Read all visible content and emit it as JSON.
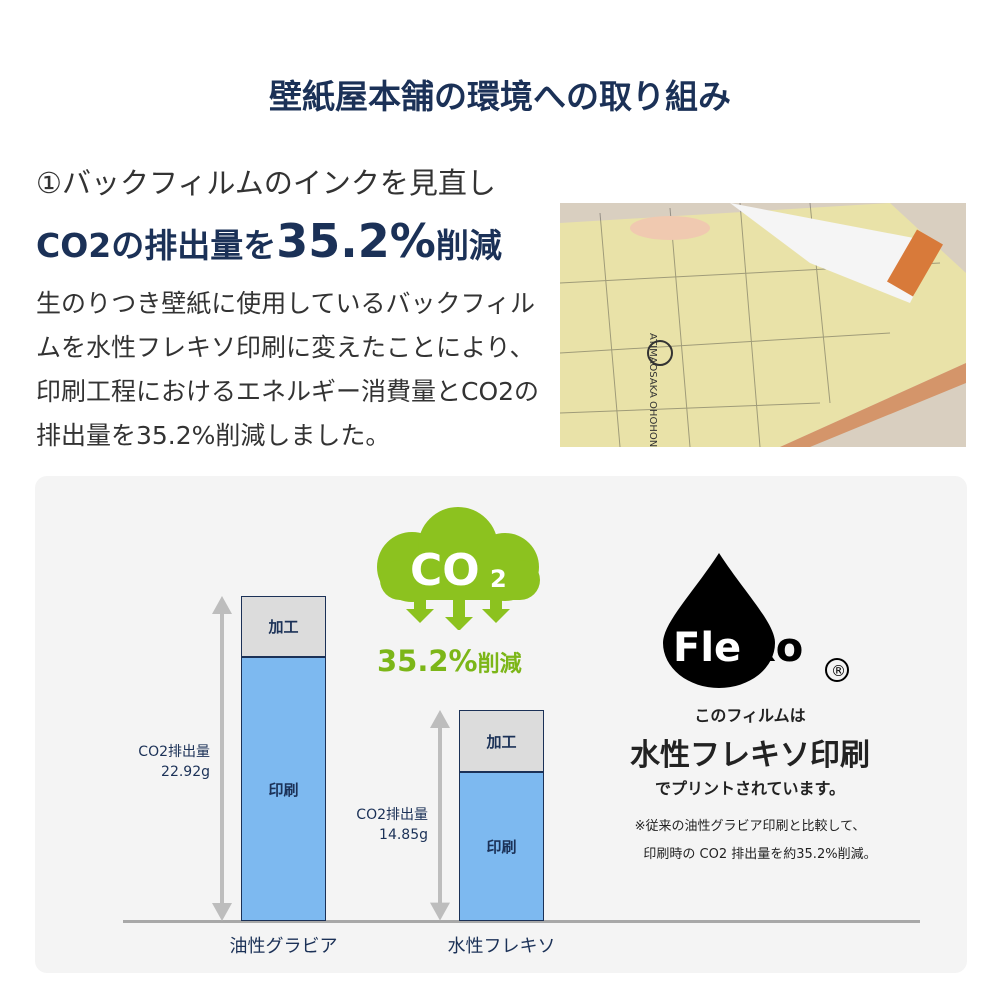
{
  "header": {
    "title": "壁紙屋本舗の環境への取り組み"
  },
  "section": {
    "subtitle": "①バックフィルムのインクを見直し",
    "headline_pre": "CO2の排出量を",
    "headline_value": "35.2%",
    "headline_post": "削減",
    "body": "生のりつき壁紙に使用しているバックフィルムを水性フレキソ印刷に変えたことにより、印刷工程におけるエネルギー消費量とCO2の排出量を35.2%削減しました。"
  },
  "photo": {
    "label": "ATIMAOSAKA OHOHON"
  },
  "badge": {
    "co2": "CO",
    "co2_sub": "2",
    "reduction_value": "35.2%",
    "reduction_label": "削減"
  },
  "flexo": {
    "logo": "Flexo",
    "registered": "®",
    "line1": "このフィルムは",
    "line2": "水性フレキソ印刷",
    "line3": "でプリントされています。",
    "note1": "※従来の油性グラビア印刷と比較して、",
    "note2": "印刷時の CO2 排出量を約35.2%削減。"
  },
  "colors": {
    "navy": "#1b3157",
    "print_blue": "#7db9f0",
    "process_gray": "#dcdcdc",
    "green": "#7cb618"
  },
  "chart_data": {
    "type": "bar",
    "stacked": true,
    "categories": [
      "油性グラビア",
      "水性フレキソ"
    ],
    "series": [
      {
        "name": "印刷",
        "values": [
          18.6,
          10.5
        ]
      },
      {
        "name": "加工",
        "values": [
          4.32,
          4.35
        ]
      }
    ],
    "totals": [
      {
        "label": "CO2排出量",
        "value": "22.92g"
      },
      {
        "label": "CO2排出量",
        "value": "14.85g"
      }
    ],
    "ylim": [
      0,
      22.92
    ],
    "grid": false
  }
}
